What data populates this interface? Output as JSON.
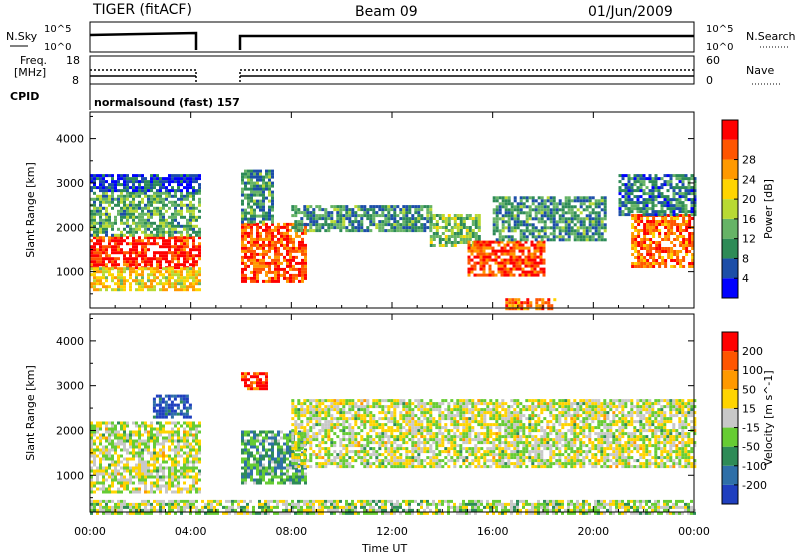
{
  "header": {
    "station": "TIGER (fitACF)",
    "beam": "Beam 09",
    "date": "01/Jun/2009"
  },
  "noise_panel": {
    "left_label": "N.Sky",
    "right_label": "N.Search",
    "top_tick": "10^5",
    "bottom_tick": "10^0"
  },
  "freq_panel": {
    "left_label_1": "Freq.",
    "left_label_2": "[MHz]",
    "left_top_tick": "18",
    "left_bottom_tick": "8",
    "right_label": "Nave",
    "right_top_tick": "60",
    "right_bottom_tick": "0"
  },
  "cpid": {
    "label": "CPID",
    "value": "normalsound (fast) 157"
  },
  "chart_data": [
    {
      "type": "heatmap",
      "quantity": "Power",
      "ylabel": "Slant Range [km]",
      "xlabel": "Time UT",
      "x_range_hours": [
        0,
        24
      ],
      "ylim": [
        180,
        4600
      ],
      "y_ticks": [
        1000,
        2000,
        3000,
        4000
      ],
      "x_ticks": [
        "00:00",
        "04:00",
        "08:00",
        "12:00",
        "16:00",
        "20:00",
        "00:00"
      ],
      "data_gap_hours": [
        4.3,
        6.0
      ],
      "colorbar": {
        "label": "Power [dB]",
        "ticks": [
          "4",
          "8",
          "12",
          "16",
          "20",
          "24",
          "28"
        ],
        "colors": [
          "#0000ff",
          "#1c4ea8",
          "#2e8b57",
          "#66b366",
          "#b8d933",
          "#ffd400",
          "#ff9900",
          "#ff5500",
          "#ff0000"
        ]
      },
      "echo_regions": [
        {
          "t0": 0.0,
          "t1": 4.3,
          "r0": 1100,
          "r1": 1800,
          "level": 0.92
        },
        {
          "t0": 0.0,
          "t1": 4.3,
          "r0": 600,
          "r1": 1100,
          "level": 0.6
        },
        {
          "t0": 0.0,
          "t1": 4.3,
          "r0": 1800,
          "r1": 2800,
          "level": 0.35
        },
        {
          "t0": 0.0,
          "t1": 4.3,
          "r0": 2800,
          "r1": 3200,
          "level": 0.15
        },
        {
          "t0": 6.0,
          "t1": 8.6,
          "r0": 800,
          "r1": 2100,
          "level": 0.85
        },
        {
          "t0": 6.0,
          "t1": 7.2,
          "r0": 2100,
          "r1": 3300,
          "level": 0.3
        },
        {
          "t0": 8.0,
          "t1": 13.5,
          "r0": 1900,
          "r1": 2500,
          "level": 0.3
        },
        {
          "t0": 13.5,
          "t1": 15.5,
          "r0": 1600,
          "r1": 2300,
          "level": 0.4
        },
        {
          "t0": 15.0,
          "t1": 18.0,
          "r0": 900,
          "r1": 1700,
          "level": 0.85
        },
        {
          "t0": 16.0,
          "t1": 20.5,
          "r0": 1700,
          "r1": 2700,
          "level": 0.3
        },
        {
          "t0": 21.5,
          "t1": 24.0,
          "r0": 1100,
          "r1": 2300,
          "level": 0.8
        },
        {
          "t0": 21.0,
          "t1": 24.0,
          "r0": 2300,
          "r1": 3200,
          "level": 0.25
        },
        {
          "t0": 16.5,
          "t1": 18.5,
          "r0": 180,
          "r1": 400,
          "level": 0.8
        }
      ]
    },
    {
      "type": "heatmap",
      "quantity": "Velocity",
      "ylabel": "Slant Range [km]",
      "xlabel": "Time UT",
      "x_range_hours": [
        0,
        24
      ],
      "ylim": [
        180,
        4600
      ],
      "y_ticks": [
        1000,
        2000,
        3000,
        4000
      ],
      "x_ticks": [
        "00:00",
        "04:00",
        "08:00",
        "12:00",
        "16:00",
        "20:00",
        "00:00"
      ],
      "data_gap_hours": [
        4.3,
        6.0
      ],
      "colorbar": {
        "label": "Velocity [m s^-1]",
        "ticks": [
          "200",
          "100",
          "50",
          "15",
          "-15",
          "-50",
          "-100",
          "-200"
        ],
        "colors": [
          "#1f3fbf",
          "#2e6fa8",
          "#2e8b57",
          "#66cc33",
          "#c8c8c8",
          "#ffd400",
          "#ff9900",
          "#ff5500",
          "#ff0000"
        ]
      },
      "echo_regions": [
        {
          "t0": 0.0,
          "t1": 4.3,
          "r0": 600,
          "r1": 2200,
          "level": 0.5
        },
        {
          "t0": 2.5,
          "t1": 4.0,
          "r0": 2300,
          "r1": 2800,
          "level": 0.08
        },
        {
          "t0": 6.0,
          "t1": 8.6,
          "r0": 800,
          "r1": 2000,
          "level": 0.3
        },
        {
          "t0": 6.0,
          "t1": 7.0,
          "r0": 2900,
          "r1": 3300,
          "level": 0.9
        },
        {
          "t0": 8.0,
          "t1": 24.0,
          "r0": 1200,
          "r1": 2700,
          "level": 0.5
        },
        {
          "t0": 0.0,
          "t1": 24.0,
          "r0": 180,
          "r1": 450,
          "level": 0.45
        }
      ]
    }
  ]
}
